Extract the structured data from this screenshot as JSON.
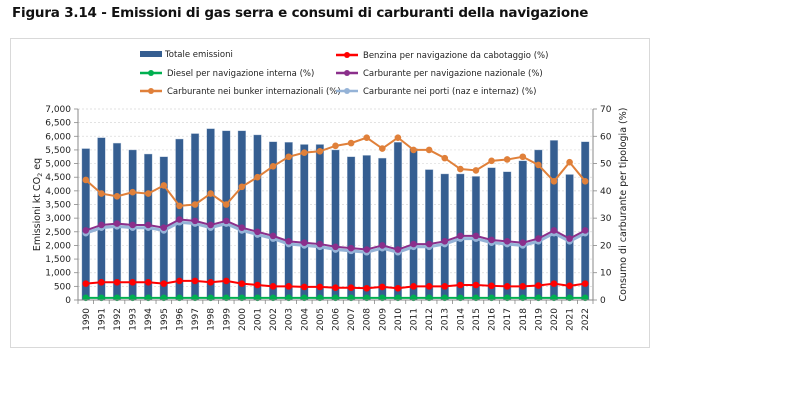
{
  "figure": {
    "title": "Figura 3.14 - Emissioni di gas serra e consumi di carburanti della navigazione"
  },
  "chart_data": {
    "type": "bar",
    "title": "Emissioni di gas serra e consumi di carburanti della navigazione",
    "categories": [
      "1990",
      "1991",
      "1992",
      "1993",
      "1994",
      "1995",
      "1996",
      "1997",
      "1998",
      "1999",
      "2000",
      "2001",
      "2002",
      "2003",
      "2004",
      "2005",
      "2006",
      "2007",
      "2008",
      "2009",
      "2010",
      "2011",
      "2012",
      "2013",
      "2014",
      "2015",
      "2016",
      "2017",
      "2018",
      "2019",
      "2020",
      "2021",
      "2022"
    ],
    "ylabel": "Emissioni kt CO2 eq",
    "ylabel_parts": {
      "main": "Emissioni kt CO",
      "sub": "2",
      "tail": " eq"
    },
    "y2label": "Consumo di carburante per tipologia (%)",
    "ylim": [
      0,
      7000
    ],
    "y2lim": [
      0,
      70
    ],
    "yticks": [
      "0",
      "500",
      "1,000",
      "1,500",
      "2,000",
      "2,500",
      "3,000",
      "3,500",
      "4,000",
      "4,500",
      "5,000",
      "5,500",
      "6,000",
      "6,500",
      "7,000"
    ],
    "y2ticks": [
      "0",
      "10",
      "20",
      "30",
      "40",
      "50",
      "60",
      "70"
    ],
    "grid": true,
    "legend_position": "top",
    "series": [
      {
        "name": "Totale emissioni",
        "kind": "bar",
        "axis": "left",
        "color": "#355E91",
        "values": [
          5550,
          5950,
          5750,
          5500,
          5350,
          5250,
          5900,
          6100,
          6280,
          6200,
          6200,
          6050,
          5800,
          5780,
          5700,
          5700,
          5500,
          5250,
          5300,
          5200,
          5780,
          5550,
          4780,
          4620,
          4620,
          4530,
          4850,
          4700,
          5100,
          5500,
          5850,
          4600,
          5800
        ]
      },
      {
        "name": "Benzina per navigazione da cabotaggio (%)",
        "kind": "line",
        "axis": "right",
        "color": "#FF0000",
        "values": [
          6,
          6.5,
          6.5,
          6.5,
          6.5,
          6,
          7,
          7,
          6.5,
          7,
          6,
          5.5,
          5,
          5,
          4.8,
          4.8,
          4.5,
          4.5,
          4.3,
          4.8,
          4.3,
          5,
          5,
          5,
          5.5,
          5.5,
          5.2,
          5,
          5,
          5.3,
          6,
          5.2,
          6
        ]
      },
      {
        "name": "Diesel per navigazione interna (%)",
        "kind": "line",
        "axis": "right",
        "color": "#00B050",
        "values": [
          0.8,
          0.8,
          0.8,
          0.8,
          0.8,
          0.8,
          0.8,
          0.8,
          0.8,
          0.8,
          0.8,
          0.8,
          0.8,
          0.8,
          0.8,
          0.8,
          0.8,
          0.8,
          0.8,
          0.8,
          0.8,
          0.8,
          0.8,
          0.8,
          0.8,
          0.8,
          0.8,
          0.8,
          0.8,
          0.8,
          0.8,
          0.8,
          0.8
        ]
      },
      {
        "name": "Carburante per navigazione nazionale (%)",
        "kind": "line",
        "axis": "right",
        "color": "#8B2F8B",
        "values": [
          25.5,
          27.5,
          28,
          27.5,
          27.5,
          26.5,
          29.5,
          29,
          27.5,
          29,
          26.5,
          25,
          23.5,
          21.5,
          21,
          20.5,
          19.5,
          19,
          18.5,
          20,
          18.5,
          20.5,
          20.5,
          21.5,
          23.5,
          23.5,
          22,
          21.5,
          21,
          22.5,
          25.5,
          22.5,
          25.5
        ]
      },
      {
        "name": "Carburante nei porti (naz e internaz) (%)",
        "kind": "line",
        "axis": "right",
        "color": "#95B3D7",
        "values": [
          24.5,
          26.5,
          27,
          26.5,
          26.5,
          25.5,
          28.5,
          28,
          26.5,
          28,
          25.5,
          24,
          22.5,
          20.5,
          20,
          19.5,
          18.5,
          18,
          17.5,
          19,
          17.5,
          19.5,
          19.5,
          20.5,
          22.5,
          22.5,
          21,
          20.5,
          20,
          21.5,
          24.5,
          21.5,
          24.5
        ]
      },
      {
        "name": "Carburante nei bunker internazionali (%)",
        "kind": "line",
        "axis": "right",
        "color": "#E0803A",
        "values": [
          44,
          39,
          38,
          39.5,
          39,
          42,
          34.5,
          35,
          39,
          35,
          41.5,
          45,
          49,
          52.5,
          54,
          54.5,
          56.5,
          57.5,
          59.5,
          55.5,
          59.5,
          55,
          55,
          52,
          48,
          47.5,
          51,
          51.5,
          52.5,
          49.5,
          43.5,
          50.5,
          43.5
        ]
      }
    ],
    "legend_order": [
      0,
      1,
      2,
      3,
      5,
      4
    ]
  }
}
